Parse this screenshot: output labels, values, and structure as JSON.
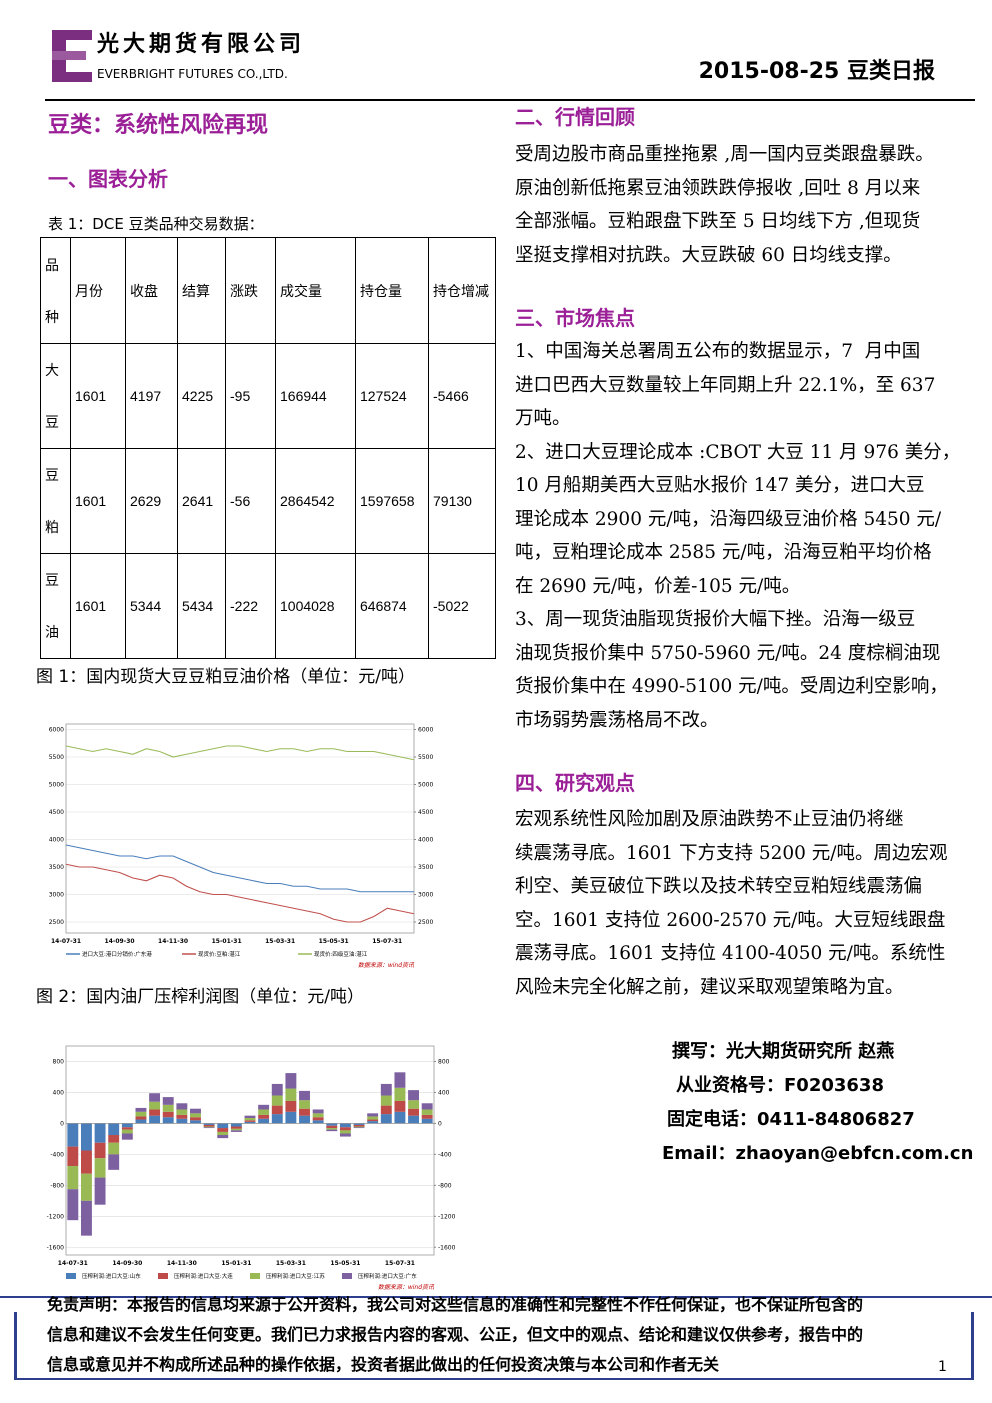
{
  "header": {
    "company_cn": "光大期货有限公司",
    "company_en": "EVERBRIGHT FUTURES CO.,LTD.",
    "date_title": "2015-08-25 豆类日报"
  },
  "title": "豆类：系统性风险再现",
  "section1": {
    "heading": "一、图表分析",
    "table_caption": "表 1：DCE 豆类品种交易数据：",
    "table": {
      "header": [
        "品种",
        "月份",
        "收盘",
        "结算",
        "涨跌",
        "成交量",
        "持仓量",
        "持仓增减"
      ],
      "rows": [
        [
          "大豆",
          1601,
          4197,
          4225,
          -95,
          166944,
          127524,
          -5466
        ],
        [
          "豆粕",
          1601,
          2629,
          2641,
          -56,
          2864542,
          1597658,
          79130
        ],
        [
          "豆油",
          1601,
          5344,
          5434,
          -222,
          1004028,
          646874,
          -5022
        ]
      ]
    }
  },
  "figures": [
    {
      "caption": "图 1：国内现货大豆豆粕豆油价格（单位：元/吨）",
      "chart": {
        "type": "line",
        "source": "数据来源：wind资讯",
        "grid": true,
        "categories": [
          "14-07-31",
          null,
          null,
          null,
          "14-09-30",
          null,
          null,
          null,
          "14-11-30",
          null,
          null,
          null,
          "15-01-31",
          null,
          null,
          null,
          "15-03-31",
          null,
          null,
          null,
          "15-05-31",
          null,
          null,
          null,
          "15-07-31",
          null,
          null
        ],
        "ylim": [
          2300,
          6100
        ],
        "yticks": [
          2500,
          3000,
          3500,
          4000,
          4500,
          5000,
          5500,
          6000
        ],
        "y2lim": [
          2300,
          6100
        ],
        "y2ticks": [
          2500,
          3000,
          3500,
          4000,
          4500,
          5000,
          5500,
          6000
        ],
        "series": [
          {
            "name": "进口大豆:港口分销价:广东港",
            "color": "#4a7ebb",
            "values": [
              3900,
              3850,
              3800,
              3750,
              3700,
              3700,
              3650,
              3700,
              3700,
              3600,
              3500,
              3400,
              3350,
              3300,
              3250,
              3200,
              3200,
              3150,
              3150,
              3100,
              3100,
              3100,
              3050,
              3050,
              3050,
              3050,
              3050
            ]
          },
          {
            "name": "现货价:豆粕:湛江",
            "color": "#c0504d",
            "values": [
              3550,
              3500,
              3500,
              3450,
              3400,
              3300,
              3250,
              3350,
              3300,
              3150,
              3050,
              3000,
              3000,
              2950,
              2900,
              2850,
              2800,
              2750,
              2700,
              2650,
              2550,
              2500,
              2500,
              2600,
              2750,
              2700,
              2650
            ]
          },
          {
            "name": "现货价:四级豆油:湛江",
            "color": "#9bbb59",
            "axis": "y2",
            "values": [
              5700,
              5650,
              5600,
              5650,
              5600,
              5550,
              5650,
              5600,
              5500,
              5550,
              5600,
              5650,
              5700,
              5700,
              5650,
              5600,
              5650,
              5650,
              5600,
              5650,
              5650,
              5600,
              5600,
              5600,
              5550,
              5500,
              5450
            ]
          }
        ]
      }
    },
    {
      "caption": "图 2：国内油厂压榨利润图（单位：元/吨）",
      "chart": {
        "type": "stacked_bar",
        "source": "数据来源：wind资讯",
        "grid": true,
        "categories": [
          "14-07-31",
          null,
          null,
          null,
          "14-09-30",
          null,
          null,
          null,
          "14-11-30",
          null,
          null,
          null,
          "15-01-31",
          null,
          null,
          null,
          "15-03-31",
          null,
          null,
          null,
          "15-05-31",
          null,
          null,
          null,
          "15-07-31",
          null,
          null
        ],
        "ylim": [
          -1700,
          1000
        ],
        "yticks": [
          -1600,
          -1200,
          -800,
          -400,
          0,
          400,
          800
        ],
        "y2lim": [
          -1700,
          1000
        ],
        "y2ticks": [
          -1600,
          -1200,
          -800,
          -400,
          0,
          400,
          800
        ],
        "series": [
          {
            "name": "压榨利润:进口大豆:山东",
            "color": "#4a7ebb",
            "values": [
              -300,
              -350,
              -250,
              -150,
              -50,
              50,
              100,
              80,
              60,
              40,
              -20,
              -60,
              -40,
              20,
              60,
              120,
              150,
              100,
              40,
              -30,
              -50,
              -20,
              30,
              120,
              150,
              100,
              60
            ]
          },
          {
            "name": "压榨利润:进口大豆:大连",
            "color": "#be4b48",
            "values": [
              -250,
              -300,
              -200,
              -100,
              -30,
              40,
              80,
              70,
              50,
              40,
              -20,
              -50,
              -30,
              20,
              50,
              110,
              140,
              90,
              40,
              -30,
              -40,
              -20,
              20,
              110,
              140,
              90,
              50
            ]
          },
          {
            "name": "压榨利润:进口大豆:江苏",
            "color": "#98b954",
            "values": [
              -300,
              -350,
              -250,
              -150,
              -50,
              60,
              100,
              90,
              70,
              50,
              -10,
              -40,
              -20,
              30,
              70,
              130,
              160,
              110,
              50,
              -20,
              -40,
              -10,
              40,
              130,
              170,
              110,
              70
            ]
          },
          {
            "name": "压榨利润:进口大豆:广东",
            "color": "#7d60a0",
            "values": [
              -400,
              -450,
              -350,
              -200,
              -80,
              50,
              110,
              100,
              80,
              60,
              -10,
              -40,
              -20,
              30,
              60,
              150,
              200,
              120,
              50,
              -20,
              -40,
              -10,
              40,
              150,
              200,
              130,
              80
            ]
          }
        ]
      }
    }
  ],
  "section2": {
    "heading": "二、行情回顾",
    "lines": [
      "受周边股市商品重挫拖累 ,周一国内豆类跟盘暴跌。",
      "原油创新低拖累豆油领跌跌停报收 ,回吐 8 月以来",
      "全部涨幅。豆粕跟盘下跌至 5 日均线下方 ,但现货",
      "坚挺支撑相对抗跌。大豆跌破 60 日均线支撑。"
    ]
  },
  "section3": {
    "heading": "三、市场焦点",
    "lines": [
      "1、中国海关总署周五公布的数据显示，7  月中国",
      "进口巴西大豆数量较上年同期上升 22.1%，至 637",
      "万吨。",
      "2、进口大豆理论成本 :CBOT 大豆 11 月 976 美分，",
      "10 月船期美西大豆贴水报价 147 美分，进口大豆",
      "理论成本 2900 元/吨，沿海四级豆油价格 5450 元/",
      "吨，豆粕理论成本 2585 元/吨，沿海豆粕平均价格",
      "在 2690 元/吨，价差-105 元/吨。",
      "3、周一现货油脂现货报价大幅下挫。沿海一级豆",
      "油现货报价集中 5750-5960 元/吨。24 度棕榈油现",
      "货报价集中在 4990-5100 元/吨。受周边利空影响，",
      "市场弱势震荡格局不改。"
    ]
  },
  "section4": {
    "heading": "四、研究观点",
    "lines": [
      "宏观系统性风险加剧及原油跌势不止豆油仍将继",
      "续震荡寻底。1601 下方支持 5200 元/吨。周边宏观",
      "利空、美豆破位下跌以及技术转空豆粕短线震荡偏",
      "空。1601 支持位 2600-2570 元/吨。大豆短线跟盘",
      "震荡寻底。1601 支持位 4100-4050 元/吨。系统性",
      "风险未完全化解之前，建议采取观望策略为宜。"
    ]
  },
  "author": [
    "撰写：光大期货研究所 赵燕",
    "从业资格号：F0203638",
    "固定电话：0411-84806827",
    "Email：zhaoyan@ebfcn.com.cn"
  ],
  "disclaimer": [
    "免责声明：本报告的信息均来源于公开资料，我公司对这些信息的准确性和完整性不作任何保证，也不保证所包含的",
    "信息和建议不会发生任何变更。我们已力求报告内容的客观、公正，但文中的观点、结论和建议仅供参考，报告中的",
    "信息或意见并不构成所述品种的操作依据，投资者据此做出的任何投资决策与本公司和作者无关"
  ],
  "page_number": "1"
}
